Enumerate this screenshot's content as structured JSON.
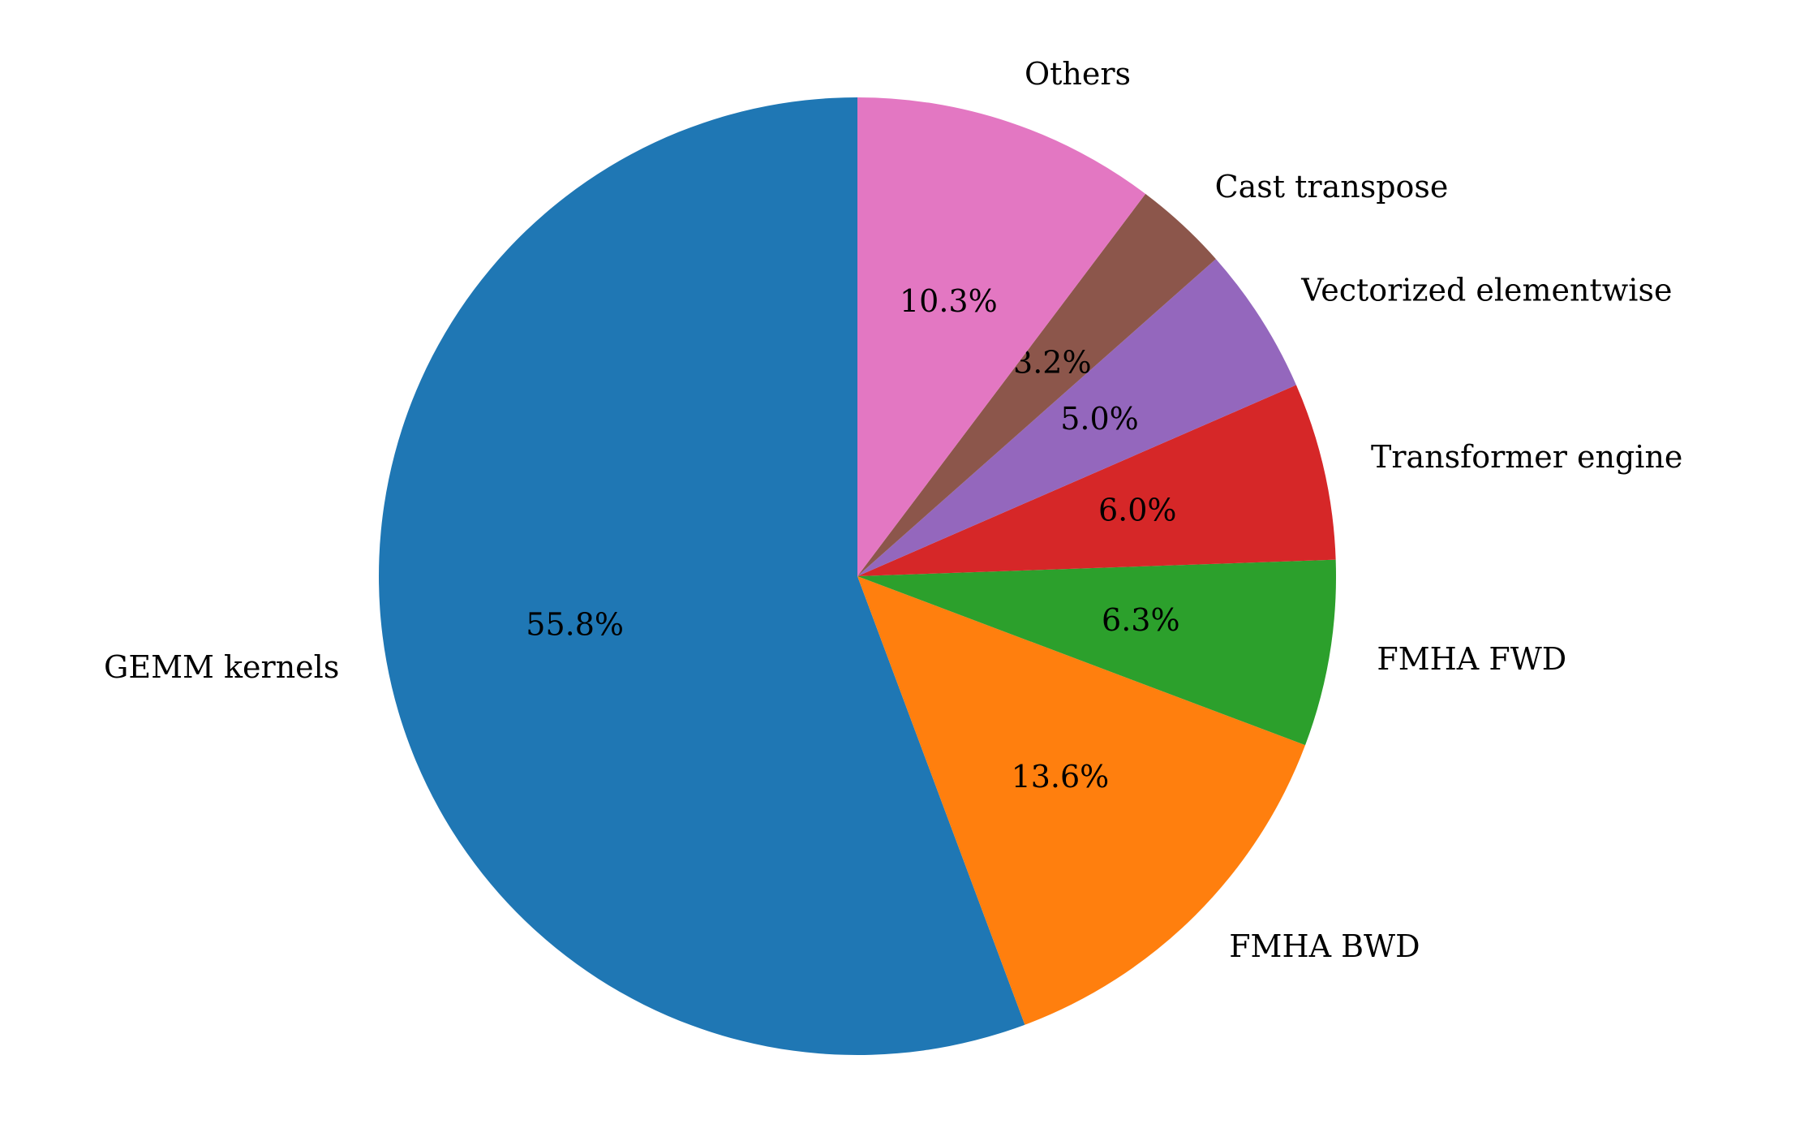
{
  "chart_data": {
    "type": "pie",
    "categories": [
      "GEMM kernels",
      "FMHA BWD",
      "FMHA FWD",
      "Transformer engine",
      "Vectorized elementwise",
      "Cast transpose",
      "Others"
    ],
    "values": [
      55.8,
      13.6,
      6.3,
      6.0,
      5.0,
      3.2,
      10.3
    ],
    "value_labels": [
      "55.8%",
      "13.6%",
      "6.3%",
      "6.0%",
      "5.0%",
      "3.2%",
      "10.3%"
    ],
    "colors": [
      "#1f77b4",
      "#ff7f0e",
      "#2ca02c",
      "#d62728",
      "#9467bd",
      "#8c564b",
      "#e377c2"
    ]
  }
}
